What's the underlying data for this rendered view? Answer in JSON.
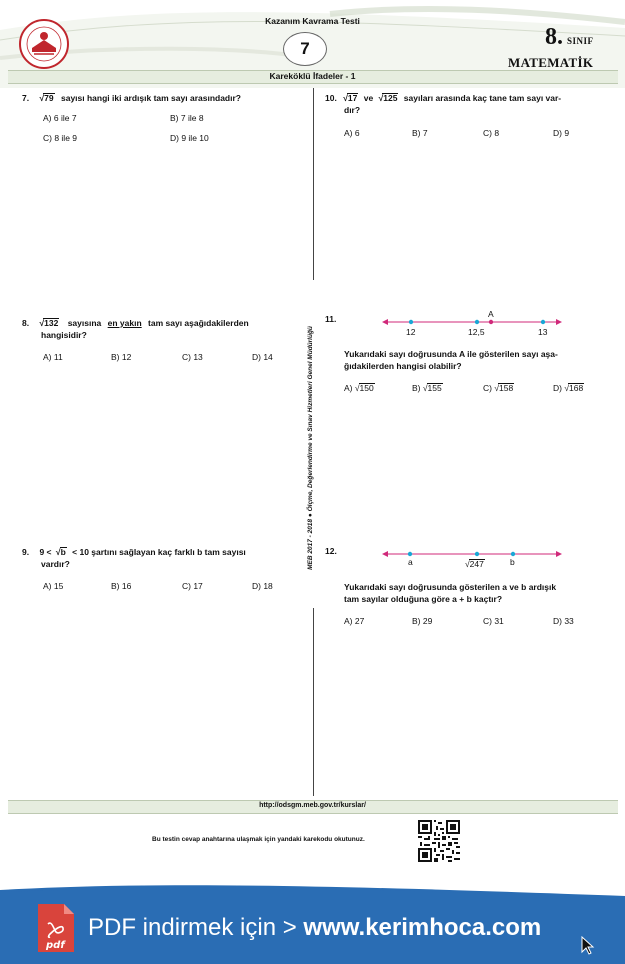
{
  "header": {
    "test_title": "Kazanım Kavrama Testi",
    "test_number": "7",
    "grade_number": "8.",
    "grade_word": "SINIF",
    "subject": "MATEMATİK",
    "topic": "Kareköklü İfadeler - 1",
    "logo_alt": "T.C. MİLLÎ EĞİTİM BAKANLIĞI"
  },
  "side_text": "MEB 2017 - 2018 ● Ölçme, Değerlendirme ve Sınav Hizmetleri Genel Müdürlüğü",
  "questions": {
    "q7": {
      "number": "7.",
      "radicand": "79",
      "text": "sayısı hangi iki ardışık tam sayı arasındadır?",
      "options": [
        "A) 6 ile 7",
        "B) 7 ile 8",
        "C) 8 ile 9",
        "D) 9 ile 10"
      ]
    },
    "q8": {
      "number": "8.",
      "radicand": "132",
      "text_a": "sayısına",
      "text_b": "en yakın",
      "text_c": "tam sayı aşağıdakilerden",
      "text_line2": "hangisidir?",
      "options": [
        "A) 11",
        "B) 12",
        "C) 13",
        "D) 14"
      ]
    },
    "q9": {
      "number": "9.",
      "text_a": "9 <",
      "radicand": "b",
      "text_b": "< 10 şartını sağlayan kaç farklı b tam sayısı",
      "text_line2": "vardır?",
      "options": [
        "A) 15",
        "B) 16",
        "C) 17",
        "D) 18"
      ]
    },
    "q10": {
      "number": "10.",
      "radicand_a": "17",
      "text_a": "ve",
      "radicand_b": "125",
      "text_b": "sayıları arasında kaç tane tam sayı var-",
      "text_line2": "dır?",
      "options": [
        "A) 6",
        "B) 7",
        "C) 8",
        "D) 9"
      ]
    },
    "q11": {
      "number": "11.",
      "line_labels": [
        "12",
        "12,5",
        "13"
      ],
      "point_label": "A",
      "text_line1": "Yukarıdaki sayı doğrusunda A ile gösterilen sayı aşa-",
      "text_line2": "ğıdakilerden hangisi olabilir?",
      "options": [
        {
          "letter": "A)",
          "radicand": "150"
        },
        {
          "letter": "B)",
          "radicand": "155"
        },
        {
          "letter": "C)",
          "radicand": "158"
        },
        {
          "letter": "D)",
          "radicand": "168"
        }
      ]
    },
    "q12": {
      "number": "12.",
      "line_labels": [
        "a",
        "247",
        "b"
      ],
      "text_line1": "Yukarıdaki sayı doğrusunda gösterilen a ve b ardışık",
      "text_line2": "tam sayılar olduğuna göre a + b kaçtır?",
      "options": [
        "A) 27",
        "B) 29",
        "C) 31",
        "D) 33"
      ]
    }
  },
  "footer": {
    "url": "http://odsgm.meb.gov.tr/kurslar/",
    "qr_note": "Bu testin cevap anahtarına ulaşmak için yandaki karekodu okutunuz."
  },
  "banner": {
    "text_a": "PDF indirmek için >",
    "text_b": "www.kerimhoca.com",
    "icon_label": "pdf"
  },
  "colors": {
    "accent_green": "#e6eddf",
    "line_magenta": "#d0297a",
    "point_cyan": "#1aa7d6",
    "banner_blue": "#2a6db4",
    "pdf_red": "#d9443c"
  }
}
